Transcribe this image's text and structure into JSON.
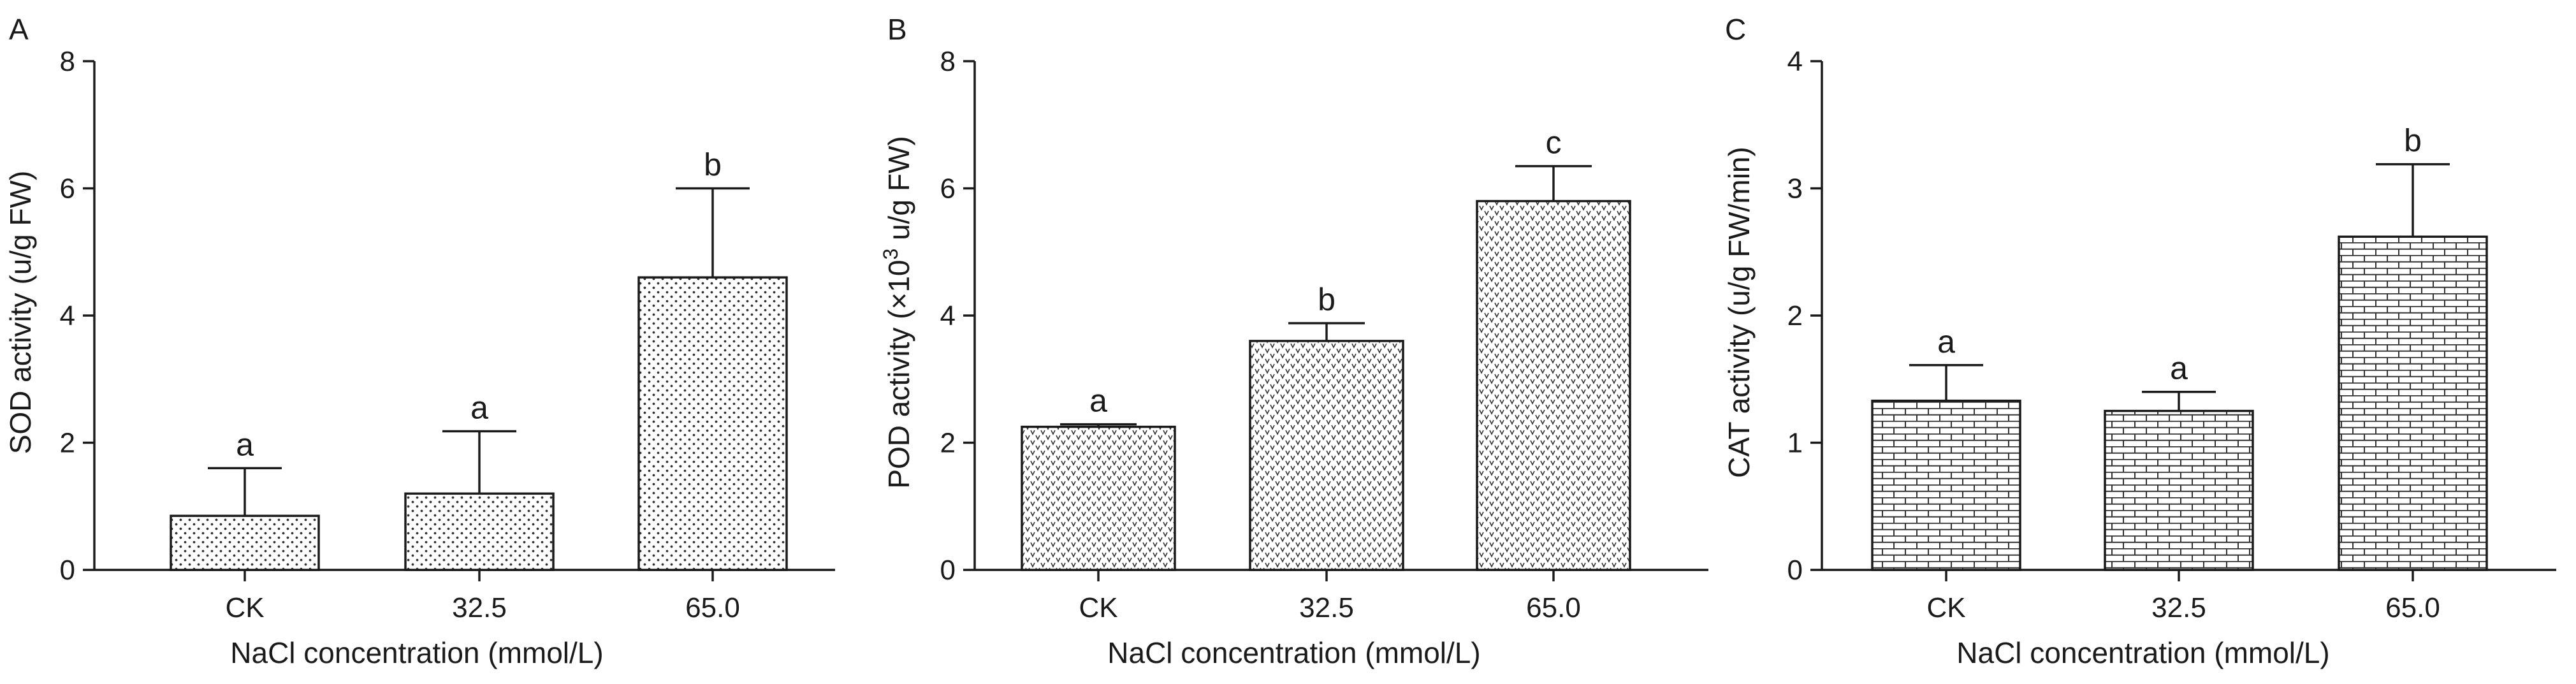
{
  "chart_data": [
    {
      "panel": "A",
      "type": "bar",
      "categories": [
        "CK",
        "32.5",
        "65.0"
      ],
      "values": [
        0.85,
        1.2,
        4.6
      ],
      "error": [
        0.75,
        0.98,
        1.4
      ],
      "significance": [
        "a",
        "a",
        "b"
      ],
      "xlabel": "NaCl concentration (mmol/L)",
      "ylabel": "SOD activity (u/g FW)",
      "ylim": [
        0,
        8
      ],
      "yticks": [
        0,
        2,
        4,
        6,
        8
      ],
      "pattern": "dots",
      "grid": false
    },
    {
      "panel": "B",
      "type": "bar",
      "categories": [
        "CK",
        "32.5",
        "65.0"
      ],
      "values": [
        2.25,
        3.6,
        5.8
      ],
      "error": [
        0.04,
        0.28,
        0.55
      ],
      "significance": [
        "a",
        "b",
        "c"
      ],
      "xlabel": "NaCl concentration (mmol/L)",
      "ylabel": "POD activity (×10",
      "ylabel_superscript": "3",
      "ylabel_suffix": " u/g FW)",
      "ylim": [
        0,
        8
      ],
      "yticks": [
        0,
        2,
        4,
        6,
        8
      ],
      "pattern": "chevrons",
      "grid": false
    },
    {
      "panel": "C",
      "type": "bar",
      "categories": [
        "CK",
        "32.5",
        "65.0"
      ],
      "values": [
        1.33,
        1.25,
        2.62
      ],
      "error": [
        0.28,
        0.15,
        0.57
      ],
      "significance": [
        "a",
        "a",
        "b"
      ],
      "xlabel": "NaCl concentration (mmol/L)",
      "ylabel": "CAT activity (u/g FW/min)",
      "ylim": [
        0,
        4
      ],
      "yticks": [
        0,
        1,
        2,
        3,
        4
      ],
      "pattern": "bricks",
      "grid": false
    }
  ]
}
